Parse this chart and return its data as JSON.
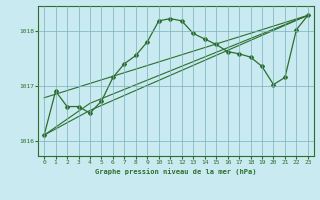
{
  "title": "Graphe pression niveau de la mer (hPa)",
  "background_color": "#c8eaf0",
  "grid_color": "#7ab0b8",
  "line_color": "#2d6e2d",
  "xlim": [
    -0.5,
    23.5
  ],
  "ylim": [
    1015.72,
    1018.45
  ],
  "yticks": [
    1016,
    1017,
    1018
  ],
  "xticks": [
    0,
    1,
    2,
    3,
    4,
    5,
    6,
    7,
    8,
    9,
    10,
    11,
    12,
    13,
    14,
    15,
    16,
    17,
    18,
    19,
    20,
    21,
    22,
    23
  ],
  "series1_x": [
    0,
    1,
    2,
    3,
    4,
    5,
    6,
    7,
    8,
    9,
    10,
    11,
    12,
    13,
    14,
    15,
    16,
    17,
    18,
    19,
    20,
    21,
    22,
    23
  ],
  "series1_y": [
    1016.1,
    1016.9,
    1016.62,
    1016.62,
    1016.5,
    1016.72,
    1017.15,
    1017.4,
    1017.55,
    1017.8,
    1018.18,
    1018.22,
    1018.18,
    1017.95,
    1017.85,
    1017.75,
    1017.62,
    1017.58,
    1017.52,
    1017.35,
    1017.02,
    1017.15,
    1018.02,
    1018.28
  ],
  "series2_x": [
    0,
    4,
    23
  ],
  "series2_y": [
    1016.1,
    1016.55,
    1018.28
  ],
  "series3_x": [
    0,
    4,
    23
  ],
  "series3_y": [
    1016.1,
    1016.68,
    1018.28
  ],
  "series4_x": [
    0,
    23
  ],
  "series4_y": [
    1016.78,
    1018.28
  ]
}
